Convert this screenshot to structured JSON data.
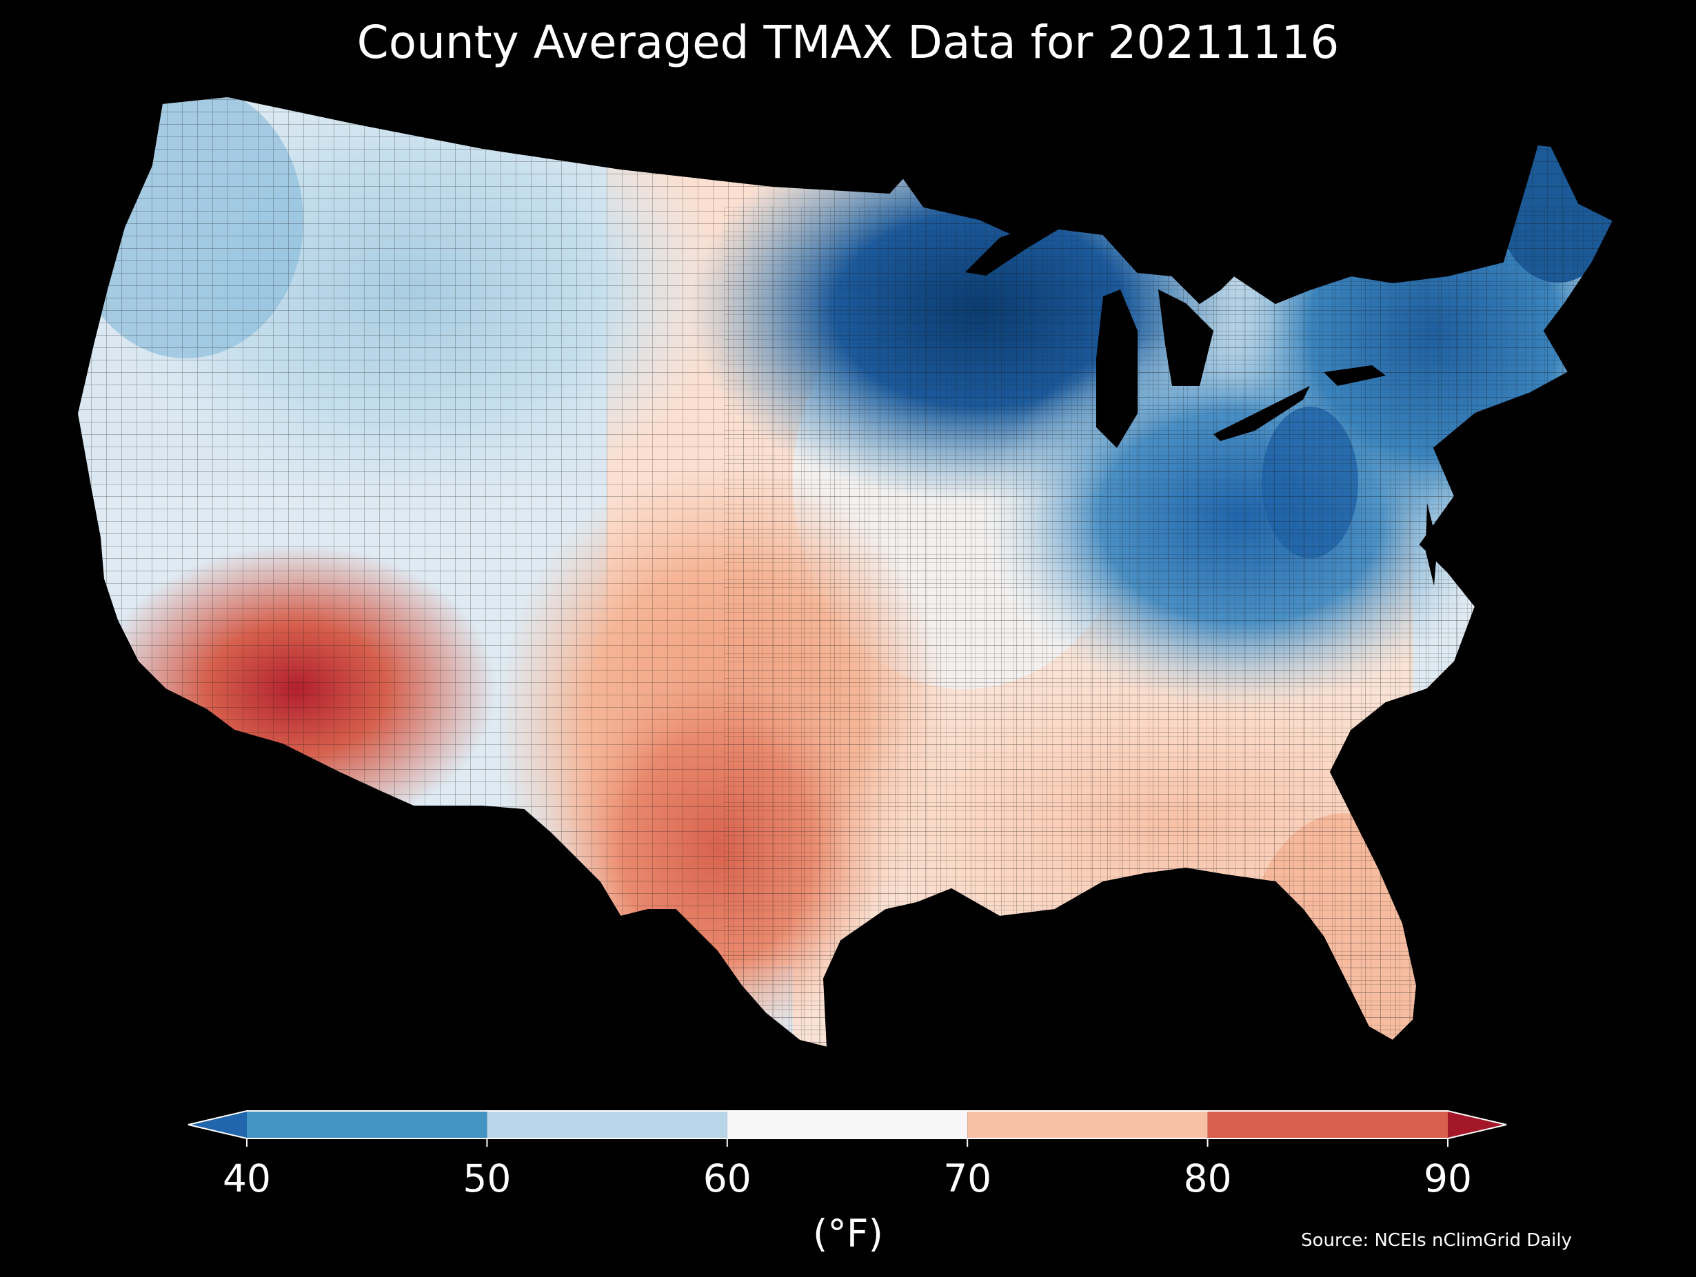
{
  "title": "County Averaged TMAX Data for 20211116",
  "colorbar": {
    "unit_label": "(°F)",
    "ticks": [
      "40",
      "50",
      "60",
      "70",
      "80",
      "90"
    ],
    "bins": [
      {
        "range": "<40",
        "color": "#2166ac"
      },
      {
        "range": "40-50",
        "color": "#4393c3"
      },
      {
        "range": "50-60",
        "color": "#b7d6e8"
      },
      {
        "range": "60-70",
        "color": "#f7f7f7"
      },
      {
        "range": "70-80",
        "color": "#f8c1a6"
      },
      {
        "range": "80-90",
        "color": "#d6604d"
      },
      {
        "range": ">90",
        "color": "#a31728"
      }
    ]
  },
  "source": "Source: NCEIs nClimGrid Daily",
  "map": {
    "region": "Contiguous United States counties",
    "variable": "TMAX",
    "date": "20211116",
    "colors": {
      "coldest": "#0b3c70",
      "cold": "#2166ac",
      "cool": "#6aaad2",
      "mild": "#b7d6e8",
      "neutral": "#f4f4f4",
      "warm": "#f8c1a6",
      "hot": "#e0735c",
      "hottest": "#b2202e"
    }
  }
}
